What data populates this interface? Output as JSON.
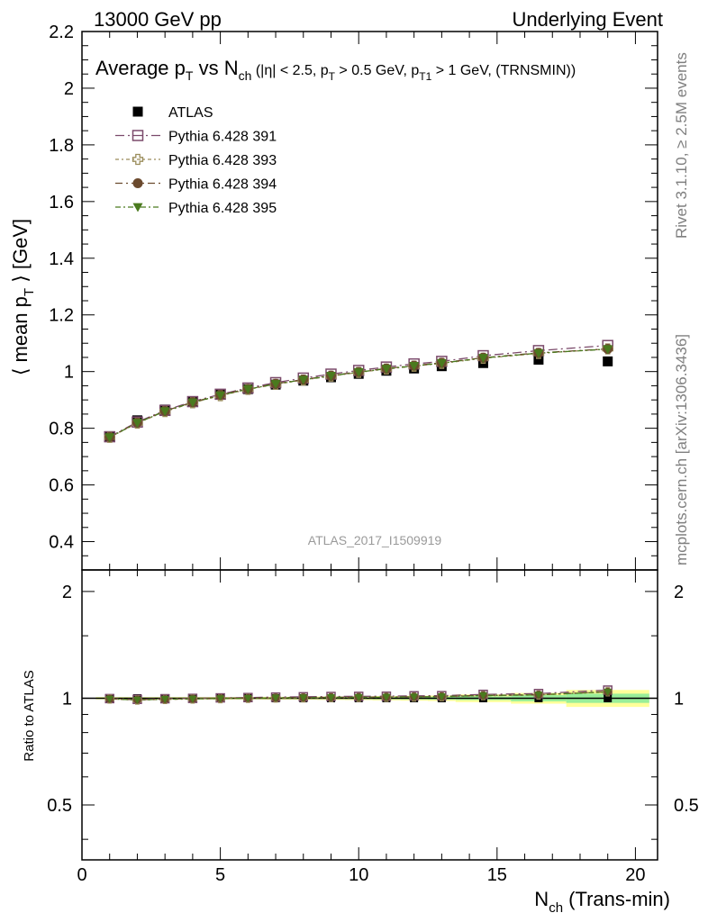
{
  "header": {
    "left": "13000 GeV pp",
    "right": "Underlying Event"
  },
  "side_notes": {
    "top": "Rivet 3.1.10, ≥ 2.5M events",
    "bottom": "mcplots.cern.ch [arXiv:1306.3436]"
  },
  "watermark": "ATLAS_2017_I1509919",
  "chart_data": {
    "type": "scatter",
    "title_parts": {
      "t1": "Average p",
      "t1sub": "T",
      "t2": " vs N",
      "t2sub": "ch",
      "t3": " (|η| < 2.5, p",
      "t3sub": "T",
      "t4": " > 0.5 GeV, p",
      "t4sub": "T1",
      "t5": " > 1 GeV, (TRNSMIN))"
    },
    "ylabel_parts": {
      "a": "⟨ mean p",
      "sub": "T",
      "b": " ⟩ [GeV]"
    },
    "xlabel_parts": {
      "a": "N",
      "sub": "ch",
      "b": " (Trans-min)"
    },
    "ratio_ylabel": "Ratio to ATLAS",
    "xlim": [
      0,
      20.8
    ],
    "ylim": [
      0.3,
      2.2
    ],
    "ratio_ylim": [
      0.35,
      2.3
    ],
    "x_ticks": [
      "0",
      "5",
      "10",
      "15",
      "20"
    ],
    "y_ticks": [
      "0.4",
      "0.6",
      "0.8",
      "1",
      "1.2",
      "1.4",
      "1.6",
      "1.8",
      "2",
      "2.2"
    ],
    "ratio_ticks": [
      "0.5",
      "1",
      "2"
    ],
    "x": [
      1,
      2,
      3,
      4,
      5,
      6,
      7,
      8,
      9,
      10,
      11,
      12,
      13,
      14.5,
      16.5,
      19
    ],
    "x_bins": [
      [
        0.5,
        1.5
      ],
      [
        1.5,
        2.5
      ],
      [
        2.5,
        3.5
      ],
      [
        3.5,
        4.5
      ],
      [
        4.5,
        5.5
      ],
      [
        5.5,
        6.5
      ],
      [
        6.5,
        7.5
      ],
      [
        7.5,
        8.5
      ],
      [
        8.5,
        9.5
      ],
      [
        9.5,
        10.5
      ],
      [
        10.5,
        11.5
      ],
      [
        11.5,
        12.5
      ],
      [
        12.5,
        13.5
      ],
      [
        13.5,
        15.5
      ],
      [
        15.5,
        17.5
      ],
      [
        17.5,
        20.5
      ]
    ],
    "ratio_band": {
      "stat": [
        0.004,
        0.004,
        0.004,
        0.004,
        0.004,
        0.004,
        0.004,
        0.005,
        0.005,
        0.006,
        0.007,
        0.008,
        0.009,
        0.012,
        0.02,
        0.03
      ],
      "total": [
        0.008,
        0.008,
        0.008,
        0.008,
        0.008,
        0.008,
        0.009,
        0.01,
        0.011,
        0.012,
        0.014,
        0.016,
        0.018,
        0.025,
        0.035,
        0.055
      ]
    },
    "series": [
      {
        "name": "ATLAS",
        "marker": "filled-square",
        "color": "#000000",
        "values": [
          0.772,
          0.828,
          0.866,
          0.895,
          0.918,
          0.938,
          0.954,
          0.968,
          0.98,
          0.992,
          1.003,
          1.011,
          1.019,
          1.03,
          1.042,
          1.036
        ]
      },
      {
        "name": "Pythia 6.428 391",
        "marker": "open-square",
        "color": "#7b4a6b",
        "dash": "10,4,2,4",
        "values": [
          0.77,
          0.822,
          0.863,
          0.894,
          0.92,
          0.942,
          0.961,
          0.977,
          0.991,
          1.004,
          1.016,
          1.027,
          1.036,
          1.056,
          1.074,
          1.092
        ]
      },
      {
        "name": "Pythia 6.428 393",
        "marker": "open-cross",
        "color": "#9a8c5a",
        "dash": "4,3,2,3",
        "values": [
          0.768,
          0.818,
          0.859,
          0.89,
          0.915,
          0.937,
          0.955,
          0.97,
          0.984,
          0.997,
          1.009,
          1.019,
          1.029,
          1.047,
          1.064,
          1.08
        ]
      },
      {
        "name": "Pythia 6.428 394",
        "marker": "filled-circle",
        "color": "#6b4a2e",
        "dash": "8,4,2,4",
        "values": [
          0.769,
          0.82,
          0.861,
          0.892,
          0.918,
          0.939,
          0.957,
          0.972,
          0.986,
          0.999,
          1.011,
          1.021,
          1.031,
          1.049,
          1.066,
          1.08
        ]
      },
      {
        "name": "Pythia 6.428 395",
        "marker": "filled-triangle-down",
        "color": "#4a7a1e",
        "dash": "6,3,2,3",
        "values": [
          0.768,
          0.819,
          0.86,
          0.891,
          0.916,
          0.938,
          0.956,
          0.971,
          0.985,
          0.998,
          1.01,
          1.02,
          1.03,
          1.048,
          1.065,
          1.079
        ]
      }
    ]
  }
}
